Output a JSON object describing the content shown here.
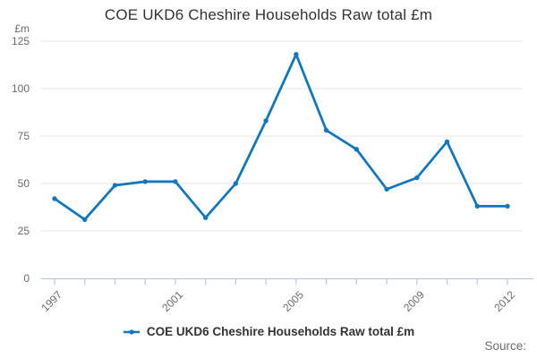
{
  "chart": {
    "title": "COE UKD6 Cheshire Households Raw total £m",
    "unit_label": "£m",
    "legend_label": "COE UKD6 Cheshire Households Raw total £m",
    "source_label": "Source:"
  },
  "chart_data": {
    "type": "line",
    "title": "COE UKD6 Cheshire Households Raw total £m",
    "xlabel": "",
    "ylabel": "£m",
    "x": [
      1997,
      1998,
      1999,
      2000,
      2001,
      2002,
      2003,
      2004,
      2005,
      2006,
      2007,
      2008,
      2009,
      2010,
      2011,
      2012
    ],
    "series": [
      {
        "name": "COE UKD6 Cheshire Households Raw total £m",
        "values": [
          42,
          31,
          49,
          51,
          51,
          32,
          50,
          83,
          118,
          78,
          68,
          47,
          53,
          72,
          38,
          38
        ]
      }
    ],
    "ylim": [
      0,
      125
    ],
    "yticks": [
      0,
      25,
      50,
      75,
      100,
      125
    ],
    "xticks_labeled": [
      1997,
      2001,
      2005,
      2009,
      2012
    ],
    "grid": "horizontal",
    "legend_position": "bottom",
    "marker": "circle",
    "colors": {
      "line": "#1077bd",
      "grid": "#e6e6e6",
      "axis": "#b9c8e0",
      "tick_text": "#6b6b6b"
    }
  }
}
